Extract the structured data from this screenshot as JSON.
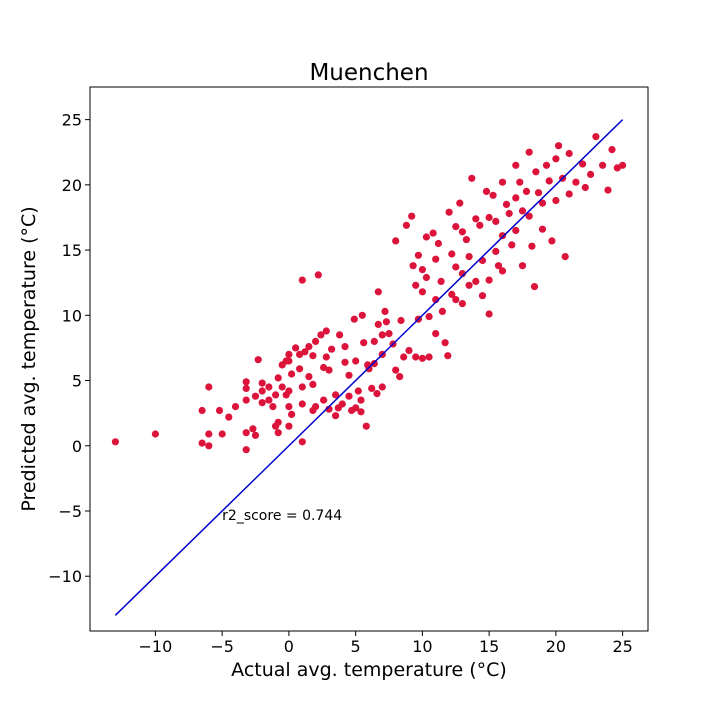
{
  "chart_data": {
    "type": "scatter",
    "title": "Muenchen",
    "xlabel": "Actual avg. temperature (°C)",
    "ylabel": "Predicted avg. temperature (°C)",
    "xlim": [
      -14.9,
      26.9
    ],
    "ylim": [
      -14.2,
      27.5
    ],
    "xticks": [
      -10,
      -5,
      0,
      5,
      10,
      15,
      20,
      25
    ],
    "yticks": [
      -10,
      -5,
      0,
      5,
      10,
      15,
      20,
      25
    ],
    "xtick_labels": [
      "−10",
      "−5",
      "0",
      "5",
      "10",
      "15",
      "20",
      "25"
    ],
    "ytick_labels": [
      "−10",
      "−5",
      "0",
      "5",
      "10",
      "15",
      "20",
      "25"
    ],
    "grid": false,
    "point_color": "#dc143c",
    "line_color": "#0000cd",
    "reference_line": {
      "x": [
        -13,
        25
      ],
      "y": [
        -13,
        25
      ]
    },
    "annotation": {
      "text": "r2_score = 0.744",
      "x": -5,
      "y": -5.7
    },
    "points": [
      [
        -13,
        0.3
      ],
      [
        -10,
        0.9
      ],
      [
        -6.5,
        0.2
      ],
      [
        -6.5,
        2.7
      ],
      [
        -6,
        4.5
      ],
      [
        -6,
        0.9
      ],
      [
        -6,
        0
      ],
      [
        -5.2,
        2.7
      ],
      [
        -5,
        0.9
      ],
      [
        -4.5,
        2.2
      ],
      [
        -4,
        3
      ],
      [
        -3.2,
        -0.3
      ],
      [
        -3.2,
        4.9
      ],
      [
        -3.2,
        4.4
      ],
      [
        -3.2,
        3.5
      ],
      [
        -3.2,
        1
      ],
      [
        -2.7,
        1.3
      ],
      [
        -2.5,
        0.8
      ],
      [
        -2.5,
        3.8
      ],
      [
        -2.3,
        6.6
      ],
      [
        -2,
        4.8
      ],
      [
        -2,
        4.2
      ],
      [
        -2,
        3.3
      ],
      [
        -1.5,
        4.5
      ],
      [
        -1.5,
        3.5
      ],
      [
        -1.2,
        3
      ],
      [
        -1,
        1.5
      ],
      [
        -1,
        3.9
      ],
      [
        -0.8,
        5.2
      ],
      [
        -0.8,
        1.8
      ],
      [
        -0.8,
        1
      ],
      [
        -0.5,
        4.5
      ],
      [
        -0.5,
        6.2
      ],
      [
        -0.2,
        6.5
      ],
      [
        -0.2,
        3.9
      ],
      [
        0,
        7
      ],
      [
        0,
        6.5
      ],
      [
        0,
        4.2
      ],
      [
        0,
        3
      ],
      [
        0,
        1.5
      ],
      [
        0.2,
        5.5
      ],
      [
        0.2,
        2.4
      ],
      [
        0.5,
        7.5
      ],
      [
        0.8,
        7
      ],
      [
        0.8,
        5.9
      ],
      [
        1,
        4.5
      ],
      [
        1,
        3.2
      ],
      [
        1,
        0.3
      ],
      [
        1,
        12.7
      ],
      [
        1.2,
        7.2
      ],
      [
        1.5,
        7.6
      ],
      [
        1.5,
        5.3
      ],
      [
        1.8,
        6.9
      ],
      [
        1.8,
        4.7
      ],
      [
        1.8,
        2.7
      ],
      [
        2,
        8
      ],
      [
        2,
        3
      ],
      [
        2.2,
        13.1
      ],
      [
        2.4,
        8.5
      ],
      [
        2.6,
        6
      ],
      [
        2.6,
        3.5
      ],
      [
        2.8,
        8.8
      ],
      [
        2.8,
        6.8
      ],
      [
        3,
        5.8
      ],
      [
        3,
        2.8
      ],
      [
        3.2,
        7.4
      ],
      [
        3.5,
        3.9
      ],
      [
        3.5,
        2.3
      ],
      [
        3.7,
        2.9
      ],
      [
        3.8,
        8.5
      ],
      [
        4,
        3.2
      ],
      [
        4.2,
        7.6
      ],
      [
        4.2,
        6.4
      ],
      [
        4.5,
        5.4
      ],
      [
        4.5,
        3.8
      ],
      [
        4.7,
        2.7
      ],
      [
        4.9,
        9.7
      ],
      [
        5,
        6.5
      ],
      [
        5,
        2.9
      ],
      [
        5.2,
        4.2
      ],
      [
        5.4,
        3.5
      ],
      [
        5.4,
        2.6
      ],
      [
        5.5,
        10
      ],
      [
        5.6,
        7.9
      ],
      [
        5.8,
        1.5
      ],
      [
        5.9,
        6.2
      ],
      [
        6,
        5.9
      ],
      [
        6.2,
        4.4
      ],
      [
        6.4,
        8
      ],
      [
        6.4,
        6.3
      ],
      [
        6.6,
        4
      ],
      [
        6.7,
        11.8
      ],
      [
        6.7,
        9.3
      ],
      [
        7,
        8.5
      ],
      [
        7,
        7
      ],
      [
        7,
        4.5
      ],
      [
        7.2,
        10.3
      ],
      [
        7.3,
        9.5
      ],
      [
        7.5,
        8.6
      ],
      [
        7.8,
        7.8
      ],
      [
        8,
        15.7
      ],
      [
        8,
        5.8
      ],
      [
        8.3,
        5.3
      ],
      [
        8.4,
        9.6
      ],
      [
        8.6,
        6.8
      ],
      [
        8.8,
        16.9
      ],
      [
        9,
        7.3
      ],
      [
        9.2,
        17.6
      ],
      [
        9.3,
        13.8
      ],
      [
        9.5,
        12.3
      ],
      [
        9.5,
        6.8
      ],
      [
        9.7,
        14.6
      ],
      [
        9.7,
        9.7
      ],
      [
        10,
        13.5
      ],
      [
        10,
        11.8
      ],
      [
        10,
        6.7
      ],
      [
        10.3,
        16
      ],
      [
        10.3,
        12.9
      ],
      [
        10.5,
        9.9
      ],
      [
        10.5,
        6.8
      ],
      [
        10.8,
        16.3
      ],
      [
        11,
        14.3
      ],
      [
        11,
        11.2
      ],
      [
        11,
        8.6
      ],
      [
        11.2,
        15.5
      ],
      [
        11.4,
        12.6
      ],
      [
        11.5,
        10.3
      ],
      [
        11.7,
        7.9
      ],
      [
        11.9,
        6.9
      ],
      [
        12,
        17.9
      ],
      [
        12.2,
        14.7
      ],
      [
        12.2,
        11.6
      ],
      [
        12.5,
        16.8
      ],
      [
        12.5,
        13.7
      ],
      [
        12.5,
        11.2
      ],
      [
        12.8,
        18.6
      ],
      [
        13,
        16.4
      ],
      [
        13,
        13.2
      ],
      [
        13,
        10.9
      ],
      [
        13.3,
        15.8
      ],
      [
        13.5,
        14.5
      ],
      [
        13.5,
        12.3
      ],
      [
        13.7,
        20.5
      ],
      [
        14,
        17.4
      ],
      [
        14,
        12.6
      ],
      [
        14.3,
        16.9
      ],
      [
        14.5,
        14.2
      ],
      [
        14.5,
        11.5
      ],
      [
        14.8,
        19.5
      ],
      [
        15,
        17.5
      ],
      [
        15,
        12.7
      ],
      [
        15,
        10.1
      ],
      [
        15.3,
        19.2
      ],
      [
        15.5,
        17.2
      ],
      [
        15.5,
        14.9
      ],
      [
        15.7,
        13.8
      ],
      [
        16,
        20.2
      ],
      [
        16,
        16.1
      ],
      [
        16,
        13.4
      ],
      [
        16.3,
        18.5
      ],
      [
        16.5,
        17.8
      ],
      [
        16.7,
        15.4
      ],
      [
        17,
        21.5
      ],
      [
        17,
        19
      ],
      [
        17,
        16.5
      ],
      [
        17.3,
        20.2
      ],
      [
        17.5,
        18
      ],
      [
        17.5,
        13.8
      ],
      [
        17.8,
        19.5
      ],
      [
        18,
        22.5
      ],
      [
        18,
        17.6
      ],
      [
        18.2,
        15.3
      ],
      [
        18.4,
        12.2
      ],
      [
        18.5,
        21
      ],
      [
        18.7,
        19.4
      ],
      [
        19,
        18.6
      ],
      [
        19,
        16.6
      ],
      [
        19.3,
        21.5
      ],
      [
        19.5,
        20.3
      ],
      [
        19.7,
        15.7
      ],
      [
        20,
        22
      ],
      [
        20,
        18.8
      ],
      [
        20.2,
        23
      ],
      [
        20.5,
        20.5
      ],
      [
        20.7,
        14.5
      ],
      [
        21,
        22.4
      ],
      [
        21,
        19.3
      ],
      [
        21.5,
        20.2
      ],
      [
        22,
        21.6
      ],
      [
        22.2,
        19.8
      ],
      [
        22.6,
        20.8
      ],
      [
        23,
        23.7
      ],
      [
        23.5,
        21.5
      ],
      [
        23.9,
        19.6
      ],
      [
        24.2,
        22.7
      ],
      [
        24.6,
        21.3
      ],
      [
        25,
        21.5
      ]
    ]
  }
}
